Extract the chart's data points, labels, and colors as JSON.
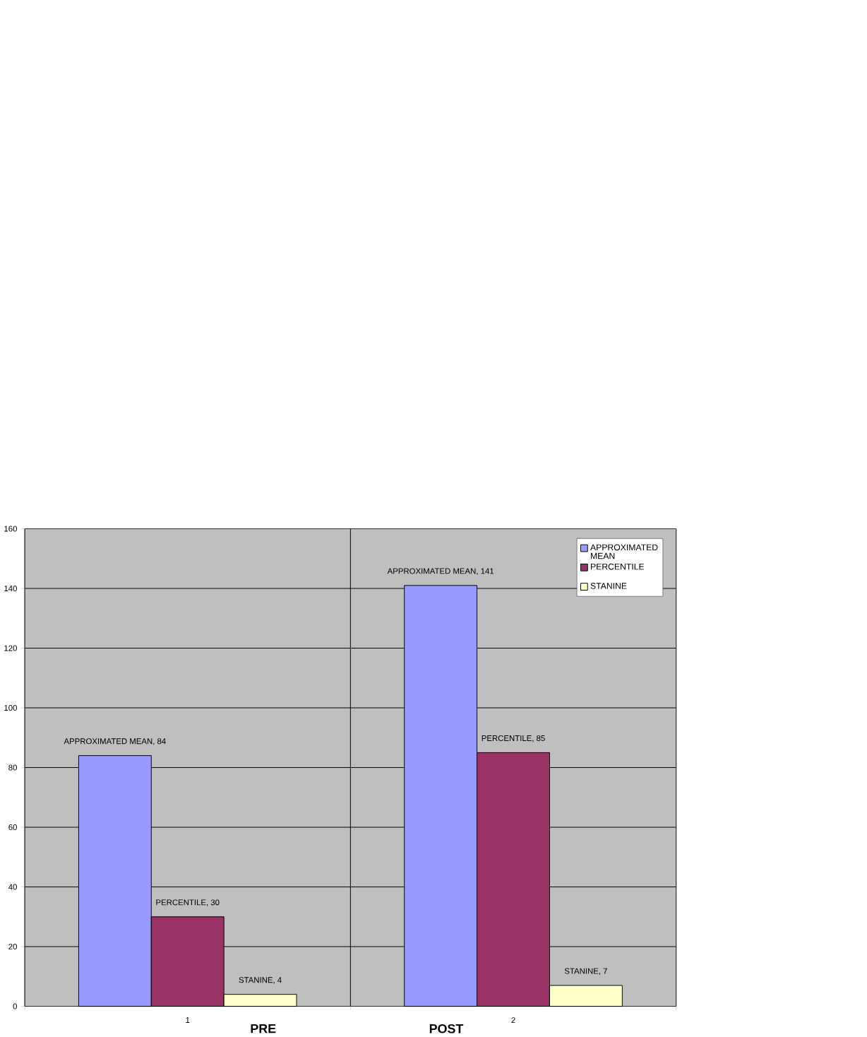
{
  "chart_data": {
    "type": "bar",
    "categories": [
      "1",
      "2"
    ],
    "series": [
      {
        "name": "APPROXIMATED MEAN",
        "color": "#9999ff",
        "values": [
          84,
          141
        ],
        "value_labels": [
          "APPROXIMATED MEAN, 84",
          "APPROXIMATED MEAN, 141"
        ]
      },
      {
        "name": "PERCENTILE",
        "color": "#993366",
        "values": [
          30,
          85
        ],
        "value_labels": [
          "PERCENTILE, 30",
          "PERCENTILE, 85"
        ]
      },
      {
        "name": "STANINE",
        "color": "#ffffcc",
        "values": [
          4,
          7
        ],
        "value_labels": [
          "STANINE, 4",
          "STANINE, 7"
        ]
      }
    ],
    "ylim": [
      0,
      160
    ],
    "yticks": [
      0,
      20,
      40,
      60,
      80,
      100,
      120,
      140,
      160
    ],
    "grid": true,
    "legend": "top right",
    "annotations": [
      "PRE",
      "POST"
    ]
  }
}
